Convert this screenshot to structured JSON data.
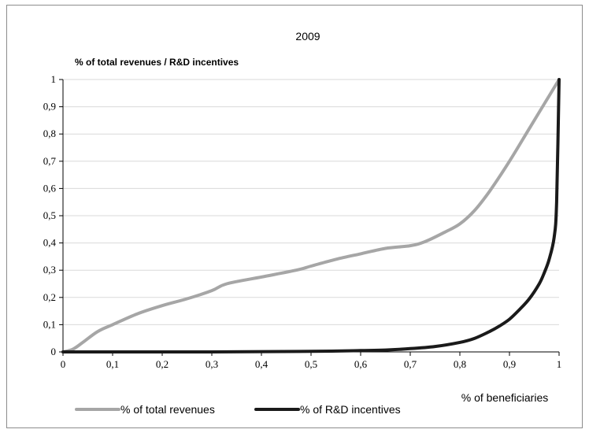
{
  "chart_data": {
    "type": "line",
    "title": "2009",
    "ylabel": "% of total revenues / R&D incentives",
    "xlabel": "% of beneficiaries",
    "xlim": [
      0,
      1
    ],
    "ylim": [
      0,
      1
    ],
    "x_ticks": [
      "0",
      "0,1",
      "0,2",
      "0,3",
      "0,4",
      "0,5",
      "0,6",
      "0,7",
      "0,8",
      "0,9",
      "1"
    ],
    "y_ticks": [
      "0",
      "0,1",
      "0,2",
      "0,3",
      "0,4",
      "0,5",
      "0,6",
      "0,7",
      "0,8",
      "0,9",
      "1"
    ],
    "grid": "horizontal",
    "legend_position": "bottom",
    "series": [
      {
        "name": "% of total revenues",
        "color": "#a6a6a6",
        "x": [
          0,
          0.02,
          0.04,
          0.07,
          0.1,
          0.15,
          0.2,
          0.25,
          0.3,
          0.33,
          0.4,
          0.47,
          0.5,
          0.55,
          0.6,
          0.65,
          0.7,
          0.73,
          0.77,
          0.8,
          0.83,
          0.86,
          0.9,
          0.94,
          0.97,
          1.0
        ],
        "y": [
          0,
          0.01,
          0.035,
          0.075,
          0.1,
          0.14,
          0.17,
          0.195,
          0.225,
          0.25,
          0.275,
          0.3,
          0.315,
          0.34,
          0.36,
          0.38,
          0.39,
          0.405,
          0.44,
          0.47,
          0.52,
          0.59,
          0.7,
          0.82,
          0.91,
          1.0
        ]
      },
      {
        "name": "% of R&D incentives",
        "color": "#1a1a1a",
        "x": [
          0,
          0.3,
          0.5,
          0.6,
          0.65,
          0.7,
          0.75,
          0.8,
          0.83,
          0.86,
          0.88,
          0.9,
          0.92,
          0.94,
          0.96,
          0.97,
          0.98,
          0.99,
          0.995,
          1.0
        ],
        "y": [
          0,
          0,
          0.002,
          0.005,
          0.007,
          0.012,
          0.02,
          0.035,
          0.05,
          0.075,
          0.095,
          0.12,
          0.155,
          0.195,
          0.25,
          0.29,
          0.34,
          0.42,
          0.55,
          1.0
        ]
      }
    ]
  }
}
